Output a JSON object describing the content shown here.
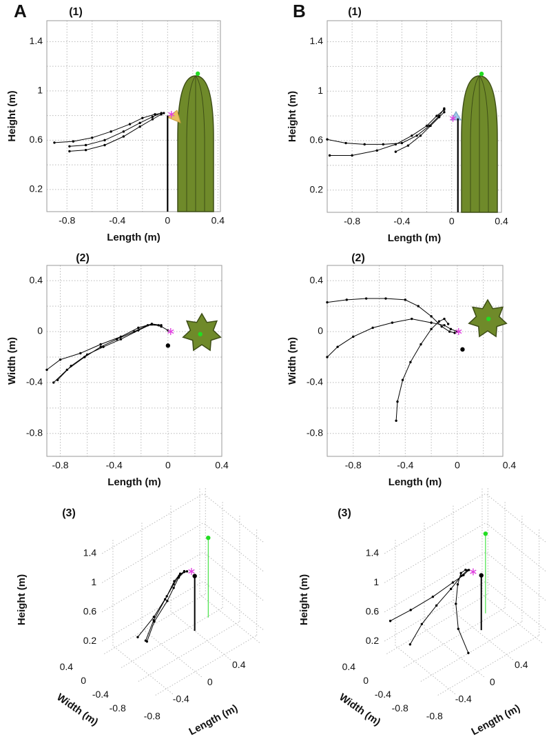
{
  "chart_data": [
    {
      "type": "line",
      "panel": "A",
      "subplot": "(1)",
      "xlabel": "Length (m)",
      "ylabel": "Height (m)",
      "xlim": [
        -0.96,
        0.42
      ],
      "ylim": [
        0.02,
        1.57
      ],
      "xticks": [
        -0.8,
        -0.4,
        0,
        0.4
      ],
      "yticks": [
        0.2,
        0.6,
        1,
        1.4
      ],
      "minor_xticks": [
        -0.6,
        -0.2,
        0.2
      ],
      "minor_yticks": [
        0.4,
        0.8,
        1.2
      ],
      "grid": true,
      "series": [
        {
          "color": "#000000",
          "x": [
            -0.9,
            -0.75,
            -0.6,
            -0.45,
            -0.3,
            -0.2,
            -0.1,
            -0.03
          ],
          "values": [
            0.58,
            0.59,
            0.62,
            0.67,
            0.73,
            0.78,
            0.81,
            0.82
          ]
        },
        {
          "color": "#000000",
          "x": [
            -0.78,
            -0.65,
            -0.5,
            -0.35,
            -0.22,
            -0.12,
            -0.05
          ],
          "values": [
            0.55,
            0.56,
            0.6,
            0.67,
            0.74,
            0.79,
            0.82
          ]
        },
        {
          "color": "#000000",
          "x": [
            -0.78,
            -0.65,
            -0.5,
            -0.35,
            -0.22,
            -0.12,
            -0.05
          ],
          "values": [
            0.51,
            0.52,
            0.56,
            0.63,
            0.71,
            0.77,
            0.81
          ]
        }
      ],
      "pole": {
        "x": 0,
        "top": 0.8
      },
      "target": {
        "x": 0.24,
        "y": 1.14,
        "color": "#22dd22"
      },
      "star": {
        "x": 0.03,
        "y": 0.81,
        "color": "#e040e0"
      }
    },
    {
      "type": "line",
      "subplot": "(2)",
      "xlabel": "Length (m)",
      "ylabel": "Width (m)",
      "xlim": [
        -0.9,
        0.4
      ],
      "ylim": [
        -0.98,
        0.52
      ],
      "xticks": [
        -0.8,
        -0.4,
        0,
        0.4
      ],
      "yticks": [
        -0.8,
        -0.4,
        0,
        0.4
      ],
      "minor_xticks": [
        -0.6,
        -0.2,
        0.2
      ],
      "minor_yticks": [
        -0.6,
        -0.2,
        0.2
      ],
      "grid": true,
      "series": [
        {
          "color": "#000000",
          "x": [
            -0.9,
            -0.8,
            -0.65,
            -0.5,
            -0.35,
            -0.22,
            -0.12,
            -0.05,
            0
          ],
          "values": [
            -0.3,
            -0.22,
            -0.17,
            -0.1,
            -0.04,
            0.03,
            0.06,
            0.04,
            0.01
          ]
        },
        {
          "color": "#000000",
          "x": [
            -0.85,
            -0.75,
            -0.62,
            -0.5,
            -0.38,
            -0.25,
            -0.15,
            -0.07
          ],
          "values": [
            -0.4,
            -0.3,
            -0.2,
            -0.12,
            -0.06,
            0,
            0.05,
            0.05
          ]
        },
        {
          "color": "#000000",
          "x": [
            -0.82,
            -0.72,
            -0.6,
            -0.48,
            -0.35,
            -0.22,
            -0.12,
            -0.05
          ],
          "values": [
            -0.38,
            -0.27,
            -0.18,
            -0.12,
            -0.06,
            0.01,
            0.06,
            0.05
          ]
        }
      ],
      "pole": {
        "x": 0,
        "y": -0.11
      },
      "target": {
        "x": 0.24,
        "y": -0.02,
        "color": "#22dd22"
      },
      "star": {
        "x": 0.02,
        "y": 0,
        "color": "#e040e0"
      }
    },
    {
      "type": "line3d",
      "subplot": "(3)",
      "xlabel": "Length (m)",
      "ylabel": "Width (m)",
      "zlabel": "Height (m)",
      "xlim": [
        -0.95,
        0.45
      ],
      "ylim": [
        -0.95,
        0.45
      ],
      "zlim": [
        0.05,
        1.5
      ],
      "xticks": [
        -0.8,
        -0.4,
        0,
        0.4
      ],
      "yticks": [
        -0.8,
        -0.4,
        0,
        0.4
      ],
      "zticks": [
        0.2,
        0.6,
        1,
        1.4
      ],
      "grid": true,
      "series": [
        {
          "color": "#000000",
          "x": [
            -0.9,
            -0.6,
            -0.35,
            -0.2,
            -0.1,
            -0.03
          ],
          "y": [
            -0.3,
            -0.17,
            -0.05,
            0.03,
            0.06,
            0.02
          ],
          "z": [
            0.58,
            0.62,
            0.7,
            0.78,
            0.81,
            0.82
          ]
        },
        {
          "color": "#000000",
          "x": [
            -0.85,
            -0.62,
            -0.38,
            -0.22,
            -0.12,
            -0.05
          ],
          "y": [
            -0.4,
            -0.2,
            -0.06,
            0.01,
            0.05,
            0.05
          ],
          "z": [
            0.55,
            0.6,
            0.68,
            0.76,
            0.8,
            0.82
          ]
        },
        {
          "color": "#000000",
          "x": [
            -0.82,
            -0.6,
            -0.35,
            -0.22,
            -0.12,
            -0.05
          ],
          "y": [
            -0.38,
            -0.18,
            -0.06,
            0.01,
            0.06,
            0.05
          ],
          "z": [
            0.51,
            0.56,
            0.64,
            0.71,
            0.77,
            0.81
          ]
        }
      ],
      "pole": {
        "x": 0,
        "y": -0.11,
        "top": 0.8
      },
      "target": {
        "x": 0.24,
        "y": -0.02,
        "z": 1.14,
        "color": "#22dd22"
      },
      "star": {
        "x": 0.02,
        "y": 0,
        "z": 0.8,
        "color": "#e040e0"
      }
    },
    {
      "type": "line",
      "panel": "B",
      "subplot": "(1)",
      "xlabel": "Length (m)",
      "ylabel": "Height (m)",
      "xlim": [
        -1.0,
        0.4
      ],
      "ylim": [
        0.02,
        1.57
      ],
      "xticks": [
        -0.8,
        -0.4,
        0,
        0.4
      ],
      "yticks": [
        0.2,
        0.6,
        1,
        1.4
      ],
      "minor_xticks": [
        -0.6,
        -0.2,
        0.2
      ],
      "minor_yticks": [
        0.4,
        0.8,
        1.2
      ],
      "grid": true,
      "series": [
        {
          "color": "#000000",
          "x": [
            -1.0,
            -0.85,
            -0.7,
            -0.55,
            -0.4,
            -0.28,
            -0.18,
            -0.1,
            -0.06
          ],
          "values": [
            0.61,
            0.58,
            0.57,
            0.57,
            0.58,
            0.64,
            0.72,
            0.8,
            0.86
          ]
        },
        {
          "color": "#000000",
          "x": [
            -0.98,
            -0.8,
            -0.6,
            -0.45,
            -0.32,
            -0.2,
            -0.12,
            -0.06
          ],
          "values": [
            0.48,
            0.48,
            0.52,
            0.57,
            0.64,
            0.72,
            0.8,
            0.85
          ]
        },
        {
          "color": "#000000",
          "x": [
            -0.45,
            -0.35,
            -0.25,
            -0.17,
            -0.1,
            -0.06
          ],
          "values": [
            0.51,
            0.56,
            0.64,
            0.72,
            0.79,
            0.83
          ]
        }
      ],
      "pole": {
        "x": 0.05,
        "top": 0.78
      },
      "target": {
        "x": 0.24,
        "y": 1.14,
        "color": "#22dd22"
      },
      "star": {
        "x": 0.01,
        "y": 0.78,
        "color": "#e040e0"
      }
    },
    {
      "type": "line",
      "subplot": "(2)",
      "xlabel": "Length (m)",
      "ylabel": "Width (m)",
      "xlim": [
        -1.0,
        0.35
      ],
      "ylim": [
        -0.98,
        0.52
      ],
      "xticks": [
        -0.8,
        -0.4,
        0,
        0.4
      ],
      "yticks": [
        -0.8,
        -0.4,
        0,
        0.4
      ],
      "minor_xticks": [
        -0.6,
        -0.2,
        0.2
      ],
      "minor_yticks": [
        -0.6,
        -0.2,
        0.2
      ],
      "grid": true,
      "series": [
        {
          "color": "#000000",
          "x": [
            -1.0,
            -0.85,
            -0.7,
            -0.55,
            -0.4,
            -0.3,
            -0.2,
            -0.12,
            -0.06,
            -0.02
          ],
          "values": [
            0.23,
            0.25,
            0.26,
            0.26,
            0.25,
            0.2,
            0.12,
            0.04,
            0,
            -0.01
          ]
        },
        {
          "color": "#000000",
          "x": [
            -1.0,
            -0.92,
            -0.8,
            -0.65,
            -0.5,
            -0.35,
            -0.2,
            -0.1,
            -0.05,
            0
          ],
          "values": [
            -0.2,
            -0.12,
            -0.04,
            0.03,
            0.07,
            0.1,
            0.07,
            0.05,
            0.02,
            0
          ]
        },
        {
          "color": "#000000",
          "x": [
            -0.47,
            -0.46,
            -0.42,
            -0.36,
            -0.28,
            -0.2,
            -0.14,
            -0.1,
            -0.07
          ],
          "values": [
            -0.7,
            -0.55,
            -0.38,
            -0.24,
            -0.1,
            0.02,
            0.08,
            0.1,
            0.06
          ]
        }
      ],
      "pole": {
        "x": 0.04,
        "y": -0.14
      },
      "target": {
        "x": 0.24,
        "y": 0.1,
        "color": "#22dd22"
      },
      "star": {
        "x": 0.01,
        "y": 0,
        "color": "#e040e0"
      }
    },
    {
      "type": "line3d",
      "subplot": "(3)",
      "xlabel": "Length (m)",
      "ylabel": "Width (m)",
      "zlabel": "Height (m)",
      "xlim": [
        -0.95,
        0.45
      ],
      "ylim": [
        -0.95,
        0.45
      ],
      "zlim": [
        0.05,
        1.5
      ],
      "xticks": [
        -0.8,
        -0.4,
        0,
        0.4
      ],
      "yticks": [
        -0.8,
        -0.4,
        0,
        0.4
      ],
      "zticks": [
        0.2,
        0.6,
        1,
        1.4
      ],
      "grid": true,
      "series": [
        {
          "color": "#000000",
          "x": [
            -1.0,
            -0.7,
            -0.4,
            -0.2,
            -0.1,
            -0.05
          ],
          "y": [
            0.23,
            0.26,
            0.25,
            0.12,
            0.04,
            0
          ],
          "z": [
            0.61,
            0.57,
            0.58,
            0.72,
            0.8,
            0.86
          ]
        },
        {
          "color": "#000000",
          "x": [
            -0.98,
            -0.7,
            -0.45,
            -0.25,
            -0.12,
            -0.06
          ],
          "y": [
            -0.2,
            0,
            0.08,
            0.08,
            0.05,
            0.02
          ],
          "z": [
            0.48,
            0.5,
            0.57,
            0.68,
            0.8,
            0.85
          ]
        },
        {
          "color": "#000000",
          "x": [
            -0.47,
            -0.42,
            -0.3,
            -0.18,
            -0.1,
            -0.06
          ],
          "y": [
            -0.7,
            -0.38,
            -0.12,
            0.04,
            0.1,
            0.06
          ],
          "z": [
            0.3,
            0.45,
            0.6,
            0.72,
            0.8,
            0.84
          ]
        }
      ],
      "pole": {
        "x": 0.04,
        "y": -0.14,
        "top": 0.8
      },
      "target": {
        "x": 0.24,
        "y": 0.1,
        "z": 1.14,
        "color": "#22dd22"
      },
      "star": {
        "x": 0.01,
        "y": 0,
        "z": 0.8,
        "color": "#e040e0"
      }
    }
  ]
}
